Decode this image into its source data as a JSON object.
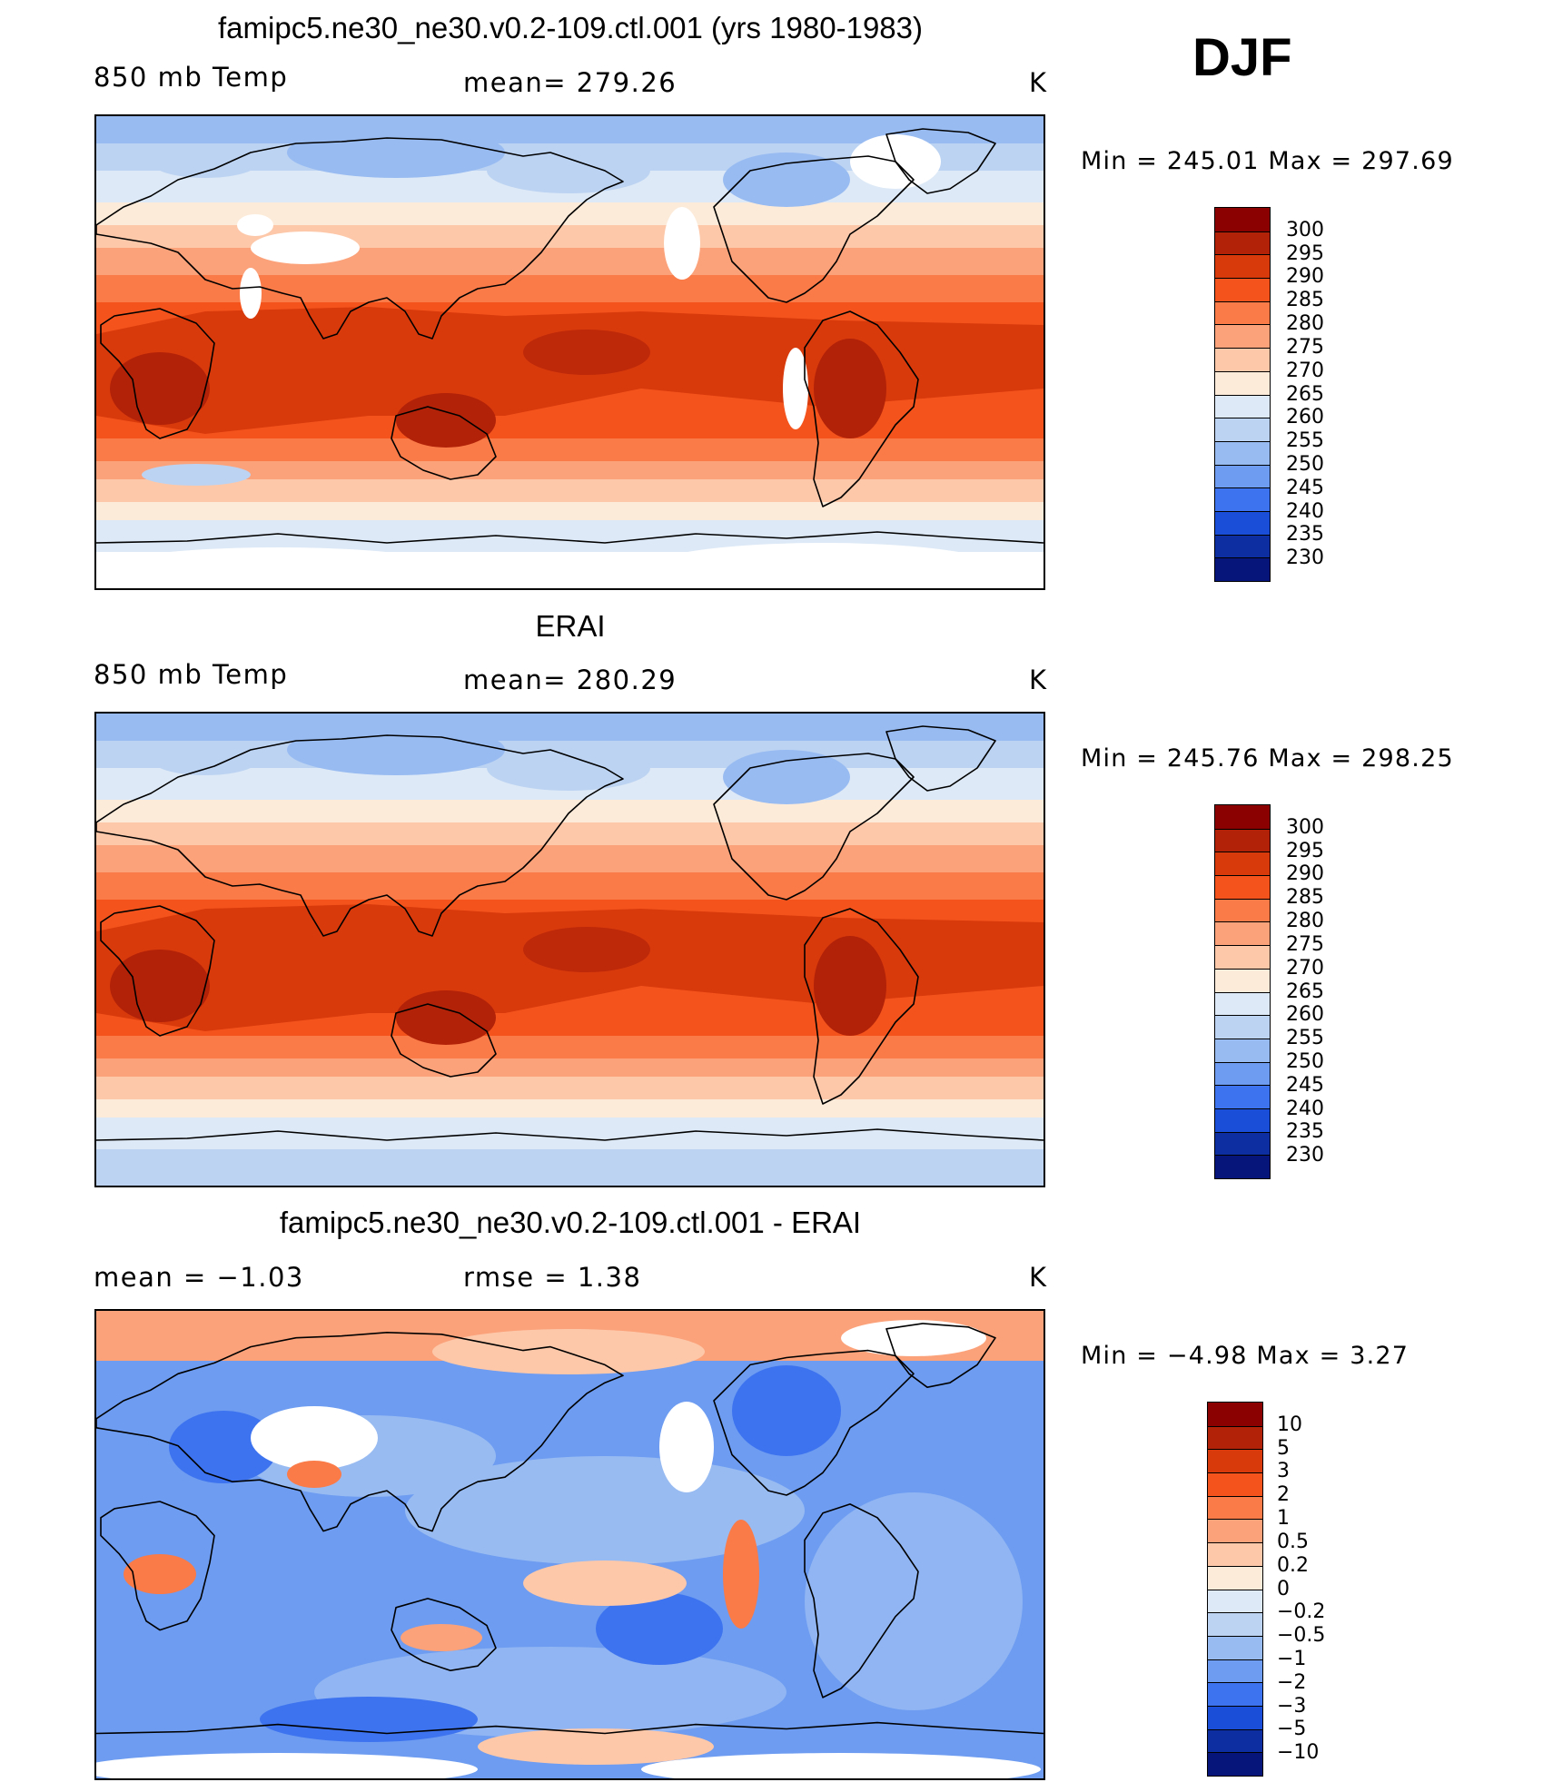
{
  "season": "DJF",
  "panels": [
    {
      "title": "famipc5.ne30_ne30.v0.2-109.ctl.001 (yrs 1980-1983)",
      "left_label": "850 mb Temp",
      "center_label": "mean=  279.26",
      "units": "K",
      "stats": "Min  =  245.01  Max  =  297.69",
      "kind": "model",
      "colorbar_labels": [
        "300",
        "295",
        "290",
        "285",
        "280",
        "275",
        "270",
        "265",
        "260",
        "255",
        "250",
        "245",
        "240",
        "235",
        "230"
      ]
    },
    {
      "title": "ERAI",
      "left_label": "850 mb Temp",
      "center_label": "mean=  280.29",
      "units": "K",
      "stats": "Min  =  245.76  Max  =  298.25",
      "kind": "obs",
      "colorbar_labels": [
        "300",
        "295",
        "290",
        "285",
        "280",
        "275",
        "270",
        "265",
        "260",
        "255",
        "250",
        "245",
        "240",
        "235",
        "230"
      ]
    },
    {
      "title": "famipc5.ne30_ne30.v0.2-109.ctl.001 - ERAI",
      "left_label": "mean  =    −1.03",
      "center_label": "rmse  =     1.38",
      "units": "K",
      "stats": "Min  =    −4.98  Max  =      3.27",
      "kind": "diff",
      "colorbar_labels": [
        "10",
        "5",
        "3",
        "2",
        "1",
        "0.5",
        "0.2",
        "0",
        "−0.2",
        "−0.5",
        "−1",
        "−2",
        "−3",
        "−5",
        "−10"
      ]
    }
  ],
  "colorbar_colors": [
    "#8b0000",
    "#b22208",
    "#d93a0c",
    "#f4541c",
    "#fa7a48",
    "#fca27a",
    "#fdc8aa",
    "#fdebd9",
    "#dde9f6",
    "#bcd3f2",
    "#98bbf2",
    "#6d9cf1",
    "#3d73ef",
    "#1a4ed8",
    "#0c2ea0",
    "#06157a"
  ],
  "legend_values": {
    "temperature": [
      300,
      295,
      290,
      285,
      280,
      275,
      270,
      265,
      260,
      255,
      250,
      245,
      240,
      235,
      230
    ],
    "difference": [
      10,
      5,
      3,
      2,
      1,
      0.5,
      0.2,
      0,
      -0.2,
      -0.5,
      -1,
      -2,
      -3,
      -5,
      -10
    ]
  }
}
